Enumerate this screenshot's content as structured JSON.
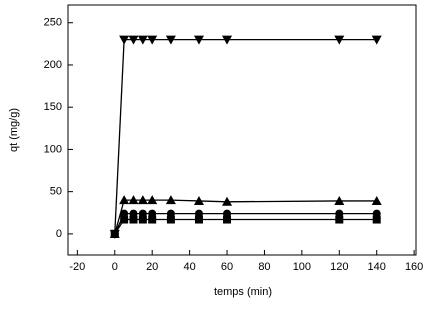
{
  "chart_data": {
    "type": "line",
    "x_label": "temps (min)",
    "y_label": "qt (mg/g)",
    "x": [
      0,
      5,
      10,
      15,
      20,
      30,
      45,
      60,
      120,
      140
    ],
    "series": [
      {
        "color": "#000000",
        "marker": "triangle-down",
        "values": [
          0,
          230,
          230,
          230,
          230,
          230,
          230,
          230,
          230,
          230
        ]
      },
      {
        "color": "#000000",
        "marker": "triangle-up",
        "values": [
          0,
          40,
          40,
          40,
          40,
          40,
          39,
          38,
          39,
          39
        ]
      },
      {
        "color": "#000000",
        "marker": "circle",
        "values": [
          0,
          24,
          24,
          24,
          24,
          24,
          24,
          24,
          24,
          24
        ]
      },
      {
        "color": "#000000",
        "marker": "square",
        "values": [
          0,
          17,
          17,
          17,
          17,
          17,
          17,
          17,
          17,
          17
        ]
      }
    ],
    "xlim": [
      -25,
      161
    ],
    "ylim": [
      -25,
      271
    ],
    "xticks": [
      -20,
      0,
      20,
      40,
      60,
      80,
      100,
      120,
      140,
      160
    ],
    "yticks": [
      0,
      50,
      100,
      150,
      200,
      250
    ]
  }
}
